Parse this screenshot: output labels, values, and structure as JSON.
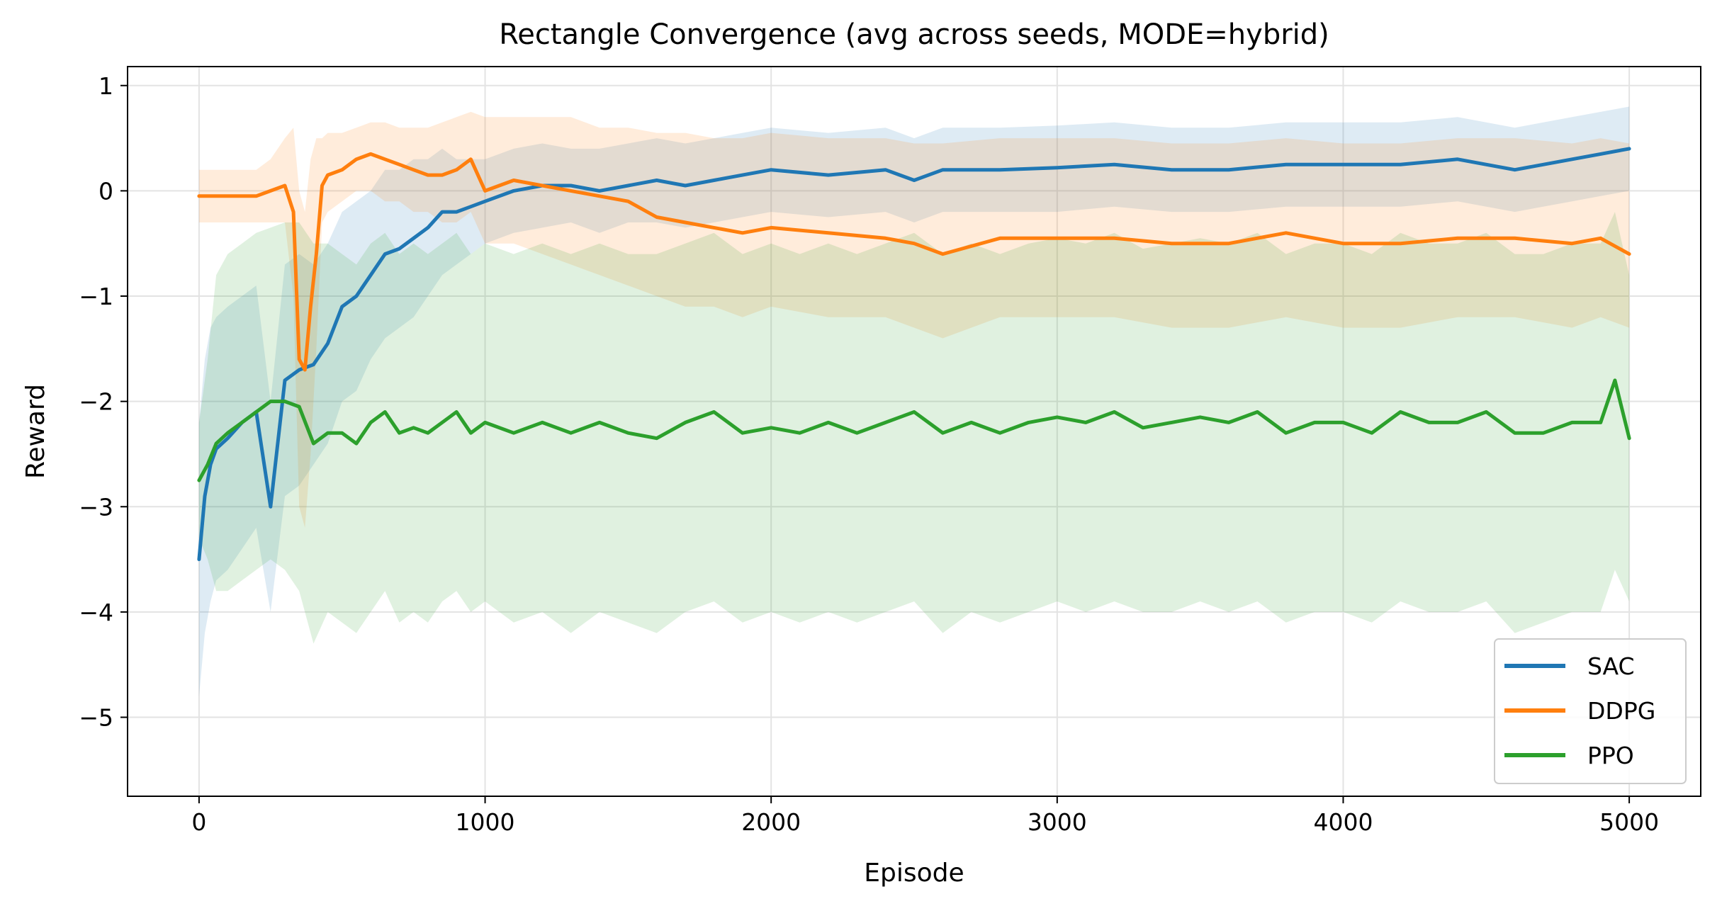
{
  "chart_data": {
    "type": "line",
    "title": "Rectangle Convergence (avg across seeds, MODE=hybrid)",
    "xlabel": "Episode",
    "ylabel": "Reward",
    "xlim": [
      -250,
      5250
    ],
    "ylim": [
      -5.75,
      1.18
    ],
    "xticks": [
      0,
      1000,
      2000,
      3000,
      4000,
      5000
    ],
    "xtick_labels": [
      "0",
      "1000",
      "2000",
      "3000",
      "4000",
      "5000"
    ],
    "yticks": [
      1,
      0,
      -1,
      -2,
      -3,
      -4,
      -5
    ],
    "ytick_labels": [
      "1",
      "0",
      "−1",
      "−2",
      "−3",
      "−4",
      "−5"
    ],
    "grid": true,
    "legend_position": "bottom-right",
    "series": [
      {
        "name": "SAC",
        "color": "#1f77b4",
        "x": [
          0,
          20,
          40,
          60,
          100,
          150,
          200,
          250,
          300,
          350,
          400,
          450,
          500,
          550,
          600,
          650,
          700,
          750,
          800,
          850,
          900,
          950,
          1000,
          1100,
          1200,
          1300,
          1400,
          1500,
          1600,
          1700,
          1800,
          1900,
          2000,
          2200,
          2400,
          2500,
          2600,
          2800,
          3000,
          3200,
          3400,
          3600,
          3800,
          4000,
          4200,
          4400,
          4600,
          4800,
          4900,
          5000
        ],
        "y": [
          -3.5,
          -2.9,
          -2.6,
          -2.45,
          -2.35,
          -2.2,
          -2.1,
          -3.0,
          -1.8,
          -1.7,
          -1.65,
          -1.45,
          -1.1,
          -1.0,
          -0.8,
          -0.6,
          -0.55,
          -0.45,
          -0.35,
          -0.2,
          -0.2,
          -0.15,
          -0.1,
          0.0,
          0.05,
          0.05,
          0.0,
          0.05,
          0.1,
          0.05,
          0.1,
          0.15,
          0.2,
          0.15,
          0.2,
          0.1,
          0.2,
          0.2,
          0.22,
          0.25,
          0.2,
          0.2,
          0.25,
          0.25,
          0.25,
          0.3,
          0.2,
          0.3,
          0.35,
          0.4
        ],
        "band_lower": [
          -4.8,
          -4.2,
          -3.9,
          -3.7,
          -3.6,
          -3.4,
          -3.2,
          -4.0,
          -2.9,
          -2.8,
          -2.6,
          -2.4,
          -2.0,
          -1.9,
          -1.6,
          -1.4,
          -1.3,
          -1.2,
          -1.0,
          -0.8,
          -0.7,
          -0.6,
          -0.5,
          -0.4,
          -0.35,
          -0.3,
          -0.4,
          -0.3,
          -0.3,
          -0.35,
          -0.3,
          -0.25,
          -0.2,
          -0.25,
          -0.2,
          -0.3,
          -0.2,
          -0.2,
          -0.2,
          -0.15,
          -0.2,
          -0.2,
          -0.15,
          -0.15,
          -0.15,
          -0.1,
          -0.2,
          -0.1,
          -0.05,
          0.0
        ],
        "band_upper": [
          -2.2,
          -1.6,
          -1.3,
          -1.2,
          -1.1,
          -1.0,
          -0.9,
          -2.0,
          -0.7,
          -0.6,
          -0.7,
          -0.5,
          -0.2,
          -0.1,
          0.0,
          0.2,
          0.2,
          0.3,
          0.3,
          0.4,
          0.3,
          0.3,
          0.3,
          0.4,
          0.45,
          0.4,
          0.4,
          0.45,
          0.5,
          0.45,
          0.5,
          0.55,
          0.6,
          0.55,
          0.6,
          0.5,
          0.6,
          0.6,
          0.62,
          0.65,
          0.6,
          0.6,
          0.65,
          0.65,
          0.65,
          0.7,
          0.6,
          0.7,
          0.75,
          0.8
        ]
      },
      {
        "name": "DDPG",
        "color": "#ff7f0e",
        "x": [
          0,
          50,
          100,
          150,
          200,
          250,
          300,
          330,
          350,
          370,
          390,
          410,
          430,
          450,
          500,
          550,
          600,
          650,
          700,
          750,
          800,
          850,
          900,
          950,
          1000,
          1100,
          1200,
          1300,
          1400,
          1500,
          1600,
          1700,
          1800,
          1900,
          2000,
          2200,
          2400,
          2500,
          2600,
          2800,
          3000,
          3200,
          3400,
          3600,
          3800,
          4000,
          4200,
          4400,
          4600,
          4800,
          4900,
          5000
        ],
        "y": [
          -0.05,
          -0.05,
          -0.05,
          -0.05,
          -0.05,
          0.0,
          0.05,
          -0.2,
          -1.6,
          -1.7,
          -1.1,
          -0.6,
          0.05,
          0.15,
          0.2,
          0.3,
          0.35,
          0.3,
          0.25,
          0.2,
          0.15,
          0.15,
          0.2,
          0.3,
          0.0,
          0.1,
          0.05,
          0.0,
          -0.05,
          -0.1,
          -0.25,
          -0.3,
          -0.35,
          -0.4,
          -0.35,
          -0.4,
          -0.45,
          -0.5,
          -0.6,
          -0.45,
          -0.45,
          -0.45,
          -0.5,
          -0.5,
          -0.4,
          -0.5,
          -0.5,
          -0.45,
          -0.45,
          -0.5,
          -0.45,
          -0.6
        ],
        "band_lower": [
          -0.3,
          -0.3,
          -0.3,
          -0.3,
          -0.3,
          -0.3,
          -0.3,
          -1.0,
          -3.0,
          -3.2,
          -2.5,
          -1.5,
          -0.3,
          -0.2,
          -0.1,
          0.0,
          0.0,
          -0.1,
          -0.1,
          -0.2,
          -0.2,
          -0.3,
          -0.3,
          -0.2,
          -0.5,
          -0.5,
          -0.6,
          -0.7,
          -0.8,
          -0.9,
          -1.0,
          -1.1,
          -1.1,
          -1.2,
          -1.1,
          -1.2,
          -1.2,
          -1.3,
          -1.4,
          -1.2,
          -1.2,
          -1.2,
          -1.3,
          -1.3,
          -1.2,
          -1.3,
          -1.3,
          -1.2,
          -1.2,
          -1.3,
          -1.2,
          -1.3
        ],
        "band_upper": [
          0.2,
          0.2,
          0.2,
          0.2,
          0.2,
          0.3,
          0.5,
          0.6,
          0.0,
          -0.2,
          0.3,
          0.5,
          0.5,
          0.55,
          0.55,
          0.6,
          0.65,
          0.65,
          0.6,
          0.6,
          0.6,
          0.65,
          0.7,
          0.75,
          0.7,
          0.7,
          0.7,
          0.7,
          0.6,
          0.6,
          0.55,
          0.55,
          0.5,
          0.5,
          0.55,
          0.5,
          0.5,
          0.45,
          0.45,
          0.5,
          0.5,
          0.5,
          0.45,
          0.45,
          0.5,
          0.45,
          0.45,
          0.5,
          0.5,
          0.45,
          0.5,
          0.45
        ]
      },
      {
        "name": "PPO",
        "color": "#2ca02c",
        "x": [
          0,
          30,
          60,
          100,
          150,
          200,
          250,
          300,
          350,
          400,
          450,
          500,
          550,
          600,
          650,
          700,
          750,
          800,
          850,
          900,
          950,
          1000,
          1100,
          1200,
          1300,
          1400,
          1500,
          1600,
          1700,
          1800,
          1900,
          2000,
          2100,
          2200,
          2300,
          2400,
          2500,
          2600,
          2700,
          2800,
          2900,
          3000,
          3100,
          3200,
          3300,
          3400,
          3500,
          3600,
          3700,
          3800,
          3900,
          4000,
          4100,
          4200,
          4300,
          4400,
          4500,
          4600,
          4700,
          4800,
          4900,
          4950,
          5000
        ],
        "y": [
          -2.75,
          -2.6,
          -2.4,
          -2.3,
          -2.2,
          -2.1,
          -2.0,
          -2.0,
          -2.05,
          -2.4,
          -2.3,
          -2.3,
          -2.4,
          -2.2,
          -2.1,
          -2.3,
          -2.25,
          -2.3,
          -2.2,
          -2.1,
          -2.3,
          -2.2,
          -2.3,
          -2.2,
          -2.3,
          -2.2,
          -2.3,
          -2.35,
          -2.2,
          -2.1,
          -2.3,
          -2.25,
          -2.3,
          -2.2,
          -2.3,
          -2.2,
          -2.1,
          -2.3,
          -2.2,
          -2.3,
          -2.2,
          -2.15,
          -2.2,
          -2.1,
          -2.25,
          -2.2,
          -2.15,
          -2.2,
          -2.1,
          -2.3,
          -2.2,
          -2.2,
          -2.3,
          -2.1,
          -2.2,
          -2.2,
          -2.1,
          -2.3,
          -2.3,
          -2.2,
          -2.2,
          -1.8,
          -2.35
        ],
        "band_lower": [
          -3.3,
          -3.5,
          -3.8,
          -3.8,
          -3.7,
          -3.6,
          -3.5,
          -3.6,
          -3.8,
          -4.3,
          -4.0,
          -4.1,
          -4.2,
          -4.0,
          -3.8,
          -4.1,
          -4.0,
          -4.1,
          -3.9,
          -3.8,
          -4.0,
          -3.9,
          -4.1,
          -4.0,
          -4.2,
          -4.0,
          -4.1,
          -4.2,
          -4.0,
          -3.9,
          -4.1,
          -4.0,
          -4.1,
          -4.0,
          -4.1,
          -4.0,
          -3.9,
          -4.2,
          -4.0,
          -4.1,
          -4.0,
          -3.9,
          -4.0,
          -3.9,
          -4.0,
          -4.0,
          -3.9,
          -4.0,
          -3.9,
          -4.1,
          -4.0,
          -4.0,
          -4.1,
          -3.9,
          -4.0,
          -4.0,
          -3.9,
          -4.2,
          -4.1,
          -4.0,
          -4.0,
          -3.6,
          -3.9
        ],
        "band_upper": [
          -2.2,
          -1.6,
          -0.8,
          -0.6,
          -0.5,
          -0.4,
          -0.35,
          -0.3,
          -0.3,
          -0.5,
          -0.5,
          -0.6,
          -0.7,
          -0.5,
          -0.4,
          -0.6,
          -0.5,
          -0.6,
          -0.5,
          -0.4,
          -0.6,
          -0.5,
          -0.6,
          -0.5,
          -0.6,
          -0.5,
          -0.6,
          -0.6,
          -0.5,
          -0.4,
          -0.6,
          -0.5,
          -0.6,
          -0.5,
          -0.6,
          -0.5,
          -0.4,
          -0.6,
          -0.5,
          -0.6,
          -0.5,
          -0.45,
          -0.5,
          -0.4,
          -0.55,
          -0.5,
          -0.45,
          -0.5,
          -0.4,
          -0.6,
          -0.5,
          -0.5,
          -0.6,
          -0.4,
          -0.5,
          -0.5,
          -0.4,
          -0.6,
          -0.6,
          -0.5,
          -0.5,
          -0.2,
          -0.8
        ]
      }
    ]
  }
}
